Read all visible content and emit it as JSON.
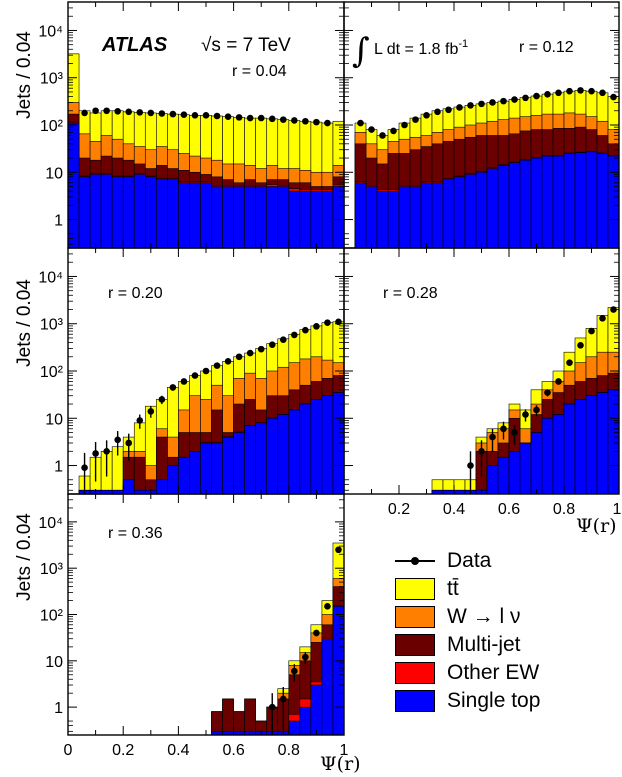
{
  "figure": {
    "experiment": "ATLAS",
    "energy": "√s = 7 TeV",
    "luminosity": "∫ L dt = 1.8 fb",
    "lumi_exp": "-1",
    "ylabel": "Jets / 0.04",
    "xlabel": "Ψ(r)"
  },
  "legend": [
    {
      "label": "Data",
      "kind": "marker",
      "color": "#000000"
    },
    {
      "label": "tt̄",
      "kind": "fill",
      "color": "#ffff00"
    },
    {
      "label": "W → l ν",
      "kind": "fill",
      "color": "#ff7f00"
    },
    {
      "label": "Multi-jet",
      "kind": "fill",
      "color": "#6b0000"
    },
    {
      "label": "Other EW",
      "kind": "fill",
      "color": "#ff0000"
    },
    {
      "label": "Single top",
      "kind": "fill",
      "color": "#0000ff"
    }
  ],
  "chart_data": [
    {
      "type": "area",
      "panel_label": "r = 0.04",
      "x": [
        0.0,
        0.04,
        0.08,
        0.12,
        0.16,
        0.2,
        0.24,
        0.28,
        0.32,
        0.36,
        0.4,
        0.44,
        0.48,
        0.52,
        0.56,
        0.6,
        0.64,
        0.68,
        0.72,
        0.76,
        0.8,
        0.84,
        0.88,
        0.92,
        0.96
      ],
      "xlim": [
        0,
        1
      ],
      "ylim": [
        0.25,
        40000
      ],
      "yscale": "log",
      "yticks": [
        "1",
        "10",
        "10²",
        "10³",
        "10⁴"
      ],
      "xticks": [
        "0",
        "0.2",
        "0.4",
        "0.6",
        "0.8",
        "1"
      ],
      "series": [
        {
          "name": "Single top",
          "values": [
            110,
            8,
            9,
            9,
            8,
            8,
            9,
            8,
            7,
            7,
            6,
            6,
            6,
            5,
            5,
            5,
            5,
            5,
            5,
            5,
            4,
            4,
            4,
            4,
            5
          ]
        },
        {
          "name": "Other EW",
          "values": [
            115,
            8.3,
            9.3,
            9.3,
            8.3,
            8.3,
            9.3,
            8.3,
            7.3,
            7.3,
            6.3,
            6.3,
            6.3,
            5.3,
            5.3,
            5.3,
            5.3,
            5.3,
            5.5,
            5.3,
            4.5,
            4.3,
            4.3,
            4.3,
            5.4
          ]
        },
        {
          "name": "Multi-jet",
          "values": [
            170,
            20,
            18,
            22,
            20,
            18,
            15,
            12,
            14,
            12,
            11,
            10,
            9,
            8,
            7,
            6,
            7,
            6,
            7,
            7,
            6,
            6,
            5,
            5,
            8
          ]
        },
        {
          "name": "W → l ν",
          "values": [
            300,
            65,
            45,
            60,
            50,
            40,
            35,
            30,
            35,
            30,
            25,
            22,
            20,
            18,
            15,
            15,
            14,
            12,
            14,
            12,
            12,
            11,
            10,
            10,
            14
          ]
        },
        {
          "name": "tt̄",
          "values": [
            3200,
            200,
            180,
            200,
            200,
            190,
            185,
            180,
            175,
            170,
            165,
            160,
            160,
            155,
            150,
            145,
            140,
            140,
            135,
            130,
            125,
            120,
            115,
            110,
            120
          ]
        },
        {
          "name": "Data",
          "values": [
            null,
            180,
            200,
            200,
            195,
            190,
            185,
            180,
            175,
            170,
            165,
            160,
            160,
            155,
            150,
            145,
            140,
            140,
            135,
            130,
            125,
            120,
            115,
            110,
            null
          ]
        }
      ]
    },
    {
      "type": "area",
      "panel_label": "r = 0.12",
      "x": [
        0.04,
        0.08,
        0.12,
        0.16,
        0.2,
        0.24,
        0.28,
        0.32,
        0.36,
        0.4,
        0.44,
        0.48,
        0.52,
        0.56,
        0.6,
        0.64,
        0.68,
        0.72,
        0.76,
        0.8,
        0.84,
        0.88,
        0.92,
        0.96
      ],
      "xlim": [
        0,
        1
      ],
      "ylim": [
        0.25,
        40000
      ],
      "yscale": "log",
      "series": [
        {
          "name": "Single top",
          "values": [
            6,
            5,
            4,
            4,
            5,
            5,
            6,
            6,
            7,
            8,
            9,
            10,
            12,
            14,
            16,
            18,
            20,
            22,
            22,
            25,
            26,
            27,
            25,
            22
          ]
        },
        {
          "name": "Other EW",
          "values": [
            6.3,
            5.3,
            4.3,
            4.3,
            5.3,
            5.3,
            6.3,
            6.3,
            7.3,
            8.3,
            9.3,
            10.3,
            12.4,
            14.4,
            16.4,
            18.5,
            20.5,
            22.6,
            22.6,
            25.6,
            26.6,
            27.6,
            25.6,
            22.6
          ]
        },
        {
          "name": "Multi-jet",
          "values": [
            40,
            20,
            15,
            25,
            25,
            30,
            35,
            40,
            45,
            50,
            55,
            60,
            60,
            60,
            65,
            75,
            80,
            80,
            85,
            85,
            90,
            80,
            60,
            40
          ]
        },
        {
          "name": "W → l ν",
          "values": [
            70,
            40,
            30,
            45,
            50,
            55,
            60,
            70,
            80,
            90,
            100,
            110,
            120,
            130,
            140,
            150,
            160,
            170,
            170,
            180,
            170,
            150,
            120,
            80
          ]
        },
        {
          "name": "tt̄",
          "values": [
            110,
            80,
            60,
            80,
            110,
            140,
            170,
            200,
            220,
            240,
            260,
            280,
            300,
            320,
            350,
            380,
            410,
            450,
            480,
            520,
            540,
            520,
            480,
            400
          ]
        },
        {
          "name": "Data",
          "values": [
            110,
            80,
            60,
            75,
            100,
            130,
            160,
            190,
            210,
            235,
            260,
            280,
            300,
            320,
            345,
            375,
            410,
            445,
            480,
            520,
            540,
            520,
            480,
            390
          ]
        }
      ]
    },
    {
      "type": "area",
      "panel_label": "r = 0.20",
      "x": [
        0.04,
        0.08,
        0.12,
        0.16,
        0.2,
        0.24,
        0.28,
        0.32,
        0.36,
        0.4,
        0.44,
        0.48,
        0.52,
        0.56,
        0.6,
        0.64,
        0.68,
        0.72,
        0.76,
        0.8,
        0.84,
        0.88,
        0.92,
        0.96
      ],
      "xlim": [
        0,
        1
      ],
      "ylim": [
        0.25,
        40000
      ],
      "yscale": "log",
      "series": [
        {
          "name": "Single top",
          "values": [
            0.3,
            0.3,
            0.3,
            0.3,
            0.5,
            0.3,
            0.3,
            0.5,
            1,
            1.5,
            2,
            3,
            3,
            4,
            5,
            7,
            8,
            10,
            12,
            15,
            20,
            25,
            30,
            35
          ]
        },
        {
          "name": "Other EW",
          "values": [
            0.3,
            0.3,
            0.3,
            0.3,
            0.5,
            0.3,
            0.3,
            0.5,
            1,
            1.5,
            2,
            3.1,
            3.1,
            4.1,
            5.1,
            7.1,
            8.1,
            10.1,
            12.1,
            15.2,
            20.2,
            25.2,
            30.3,
            35.3
          ]
        },
        {
          "name": "Multi-jet",
          "values": [
            0.3,
            0.3,
            0.3,
            0.3,
            1.5,
            1.5,
            0.5,
            4,
            1.5,
            5,
            5,
            5,
            15,
            5,
            20,
            25,
            15,
            30,
            30,
            40,
            50,
            60,
            70,
            80
          ]
        },
        {
          "name": "W → l ν",
          "values": [
            0.3,
            0.3,
            0.3,
            0.3,
            2,
            2,
            1,
            6,
            4,
            15,
            30,
            25,
            50,
            30,
            70,
            90,
            70,
            100,
            120,
            150,
            180,
            200,
            170,
            150
          ]
        },
        {
          "name": "tt̄",
          "values": [
            0.6,
            1.5,
            2,
            2.5,
            4,
            8,
            18,
            25,
            45,
            60,
            80,
            100,
            130,
            160,
            200,
            240,
            300,
            380,
            480,
            600,
            750,
            900,
            1050,
            1100
          ]
        },
        {
          "name": "Data",
          "values": [
            0.9,
            1.8,
            2,
            3.5,
            3,
            9,
            14,
            25,
            45,
            60,
            80,
            100,
            130,
            160,
            200,
            240,
            290,
            360,
            460,
            580,
            730,
            880,
            1050,
            1100
          ]
        }
      ]
    },
    {
      "type": "area",
      "panel_label": "r = 0.28",
      "x": [
        0.32,
        0.36,
        0.4,
        0.44,
        0.48,
        0.52,
        0.56,
        0.6,
        0.64,
        0.68,
        0.72,
        0.76,
        0.8,
        0.84,
        0.88,
        0.92,
        0.96
      ],
      "xlim": [
        0,
        1
      ],
      "ylim": [
        0.25,
        40000
      ],
      "yscale": "log",
      "series": [
        {
          "name": "Single top",
          "values": [
            0.3,
            0.3,
            0.3,
            0.3,
            0.3,
            1,
            1.5,
            2,
            3,
            5,
            10,
            12,
            20,
            25,
            30,
            35,
            40
          ]
        },
        {
          "name": "Other EW",
          "values": [
            0.3,
            0.3,
            0.3,
            0.3,
            0.3,
            1,
            1.5,
            2,
            3,
            5,
            10.1,
            12.1,
            20.2,
            25.2,
            30.3,
            35.3,
            40.4
          ]
        },
        {
          "name": "Multi-jet",
          "values": [
            0.3,
            0.3,
            0.3,
            0.3,
            2,
            2,
            3,
            10,
            3,
            12,
            25,
            35,
            50,
            60,
            70,
            80,
            90
          ]
        },
        {
          "name": "W → l ν",
          "values": [
            0.3,
            0.3,
            0.3,
            0.3,
            3,
            5,
            6,
            15,
            6,
            20,
            40,
            60,
            100,
            150,
            200,
            250,
            250
          ]
        },
        {
          "name": "tt̄",
          "values": [
            0.5,
            0.5,
            0.5,
            0.5,
            4,
            6,
            8,
            20,
            15,
            40,
            60,
            100,
            250,
            500,
            800,
            1500,
            2200
          ]
        },
        {
          "name": "Data",
          "values": [
            null,
            null,
            null,
            1,
            2,
            4,
            6,
            5,
            12,
            15,
            35,
            60,
            150,
            350,
            700,
            1300,
            2000
          ]
        }
      ]
    },
    {
      "type": "area",
      "panel_label": "r = 0.36",
      "x": [
        0.52,
        0.56,
        0.6,
        0.64,
        0.68,
        0.72,
        0.76,
        0.8,
        0.84,
        0.88,
        0.92,
        0.96
      ],
      "xlim": [
        0,
        1
      ],
      "ylim": [
        0.25,
        40000
      ],
      "yscale": "log",
      "series": [
        {
          "name": "Single top",
          "values": [
            0.3,
            0.3,
            0.3,
            0.3,
            0.3,
            0.3,
            0.3,
            0.5,
            1,
            3,
            30,
            150
          ]
        },
        {
          "name": "Other EW",
          "values": [
            0.3,
            0.3,
            0.3,
            0.3,
            0.3,
            0.3,
            0.3,
            0.7,
            1.5,
            3.5,
            32,
            155
          ]
        },
        {
          "name": "Multi-jet",
          "values": [
            0.8,
            1.5,
            0.8,
            1.5,
            0.5,
            1,
            1.5,
            5,
            10,
            25,
            60,
            400
          ]
        },
        {
          "name": "W → l ν",
          "values": [
            0.8,
            1.5,
            0.8,
            1.5,
            0.5,
            1,
            2,
            8,
            15,
            40,
            100,
            600
          ]
        },
        {
          "name": "tt̄",
          "values": [
            0.8,
            1.5,
            0.8,
            1.5,
            0.5,
            1,
            2.5,
            10,
            20,
            60,
            200,
            3500
          ]
        },
        {
          "name": "Data",
          "values": [
            null,
            null,
            null,
            null,
            null,
            1,
            1.5,
            6,
            12,
            40,
            150,
            2500
          ]
        }
      ]
    }
  ]
}
